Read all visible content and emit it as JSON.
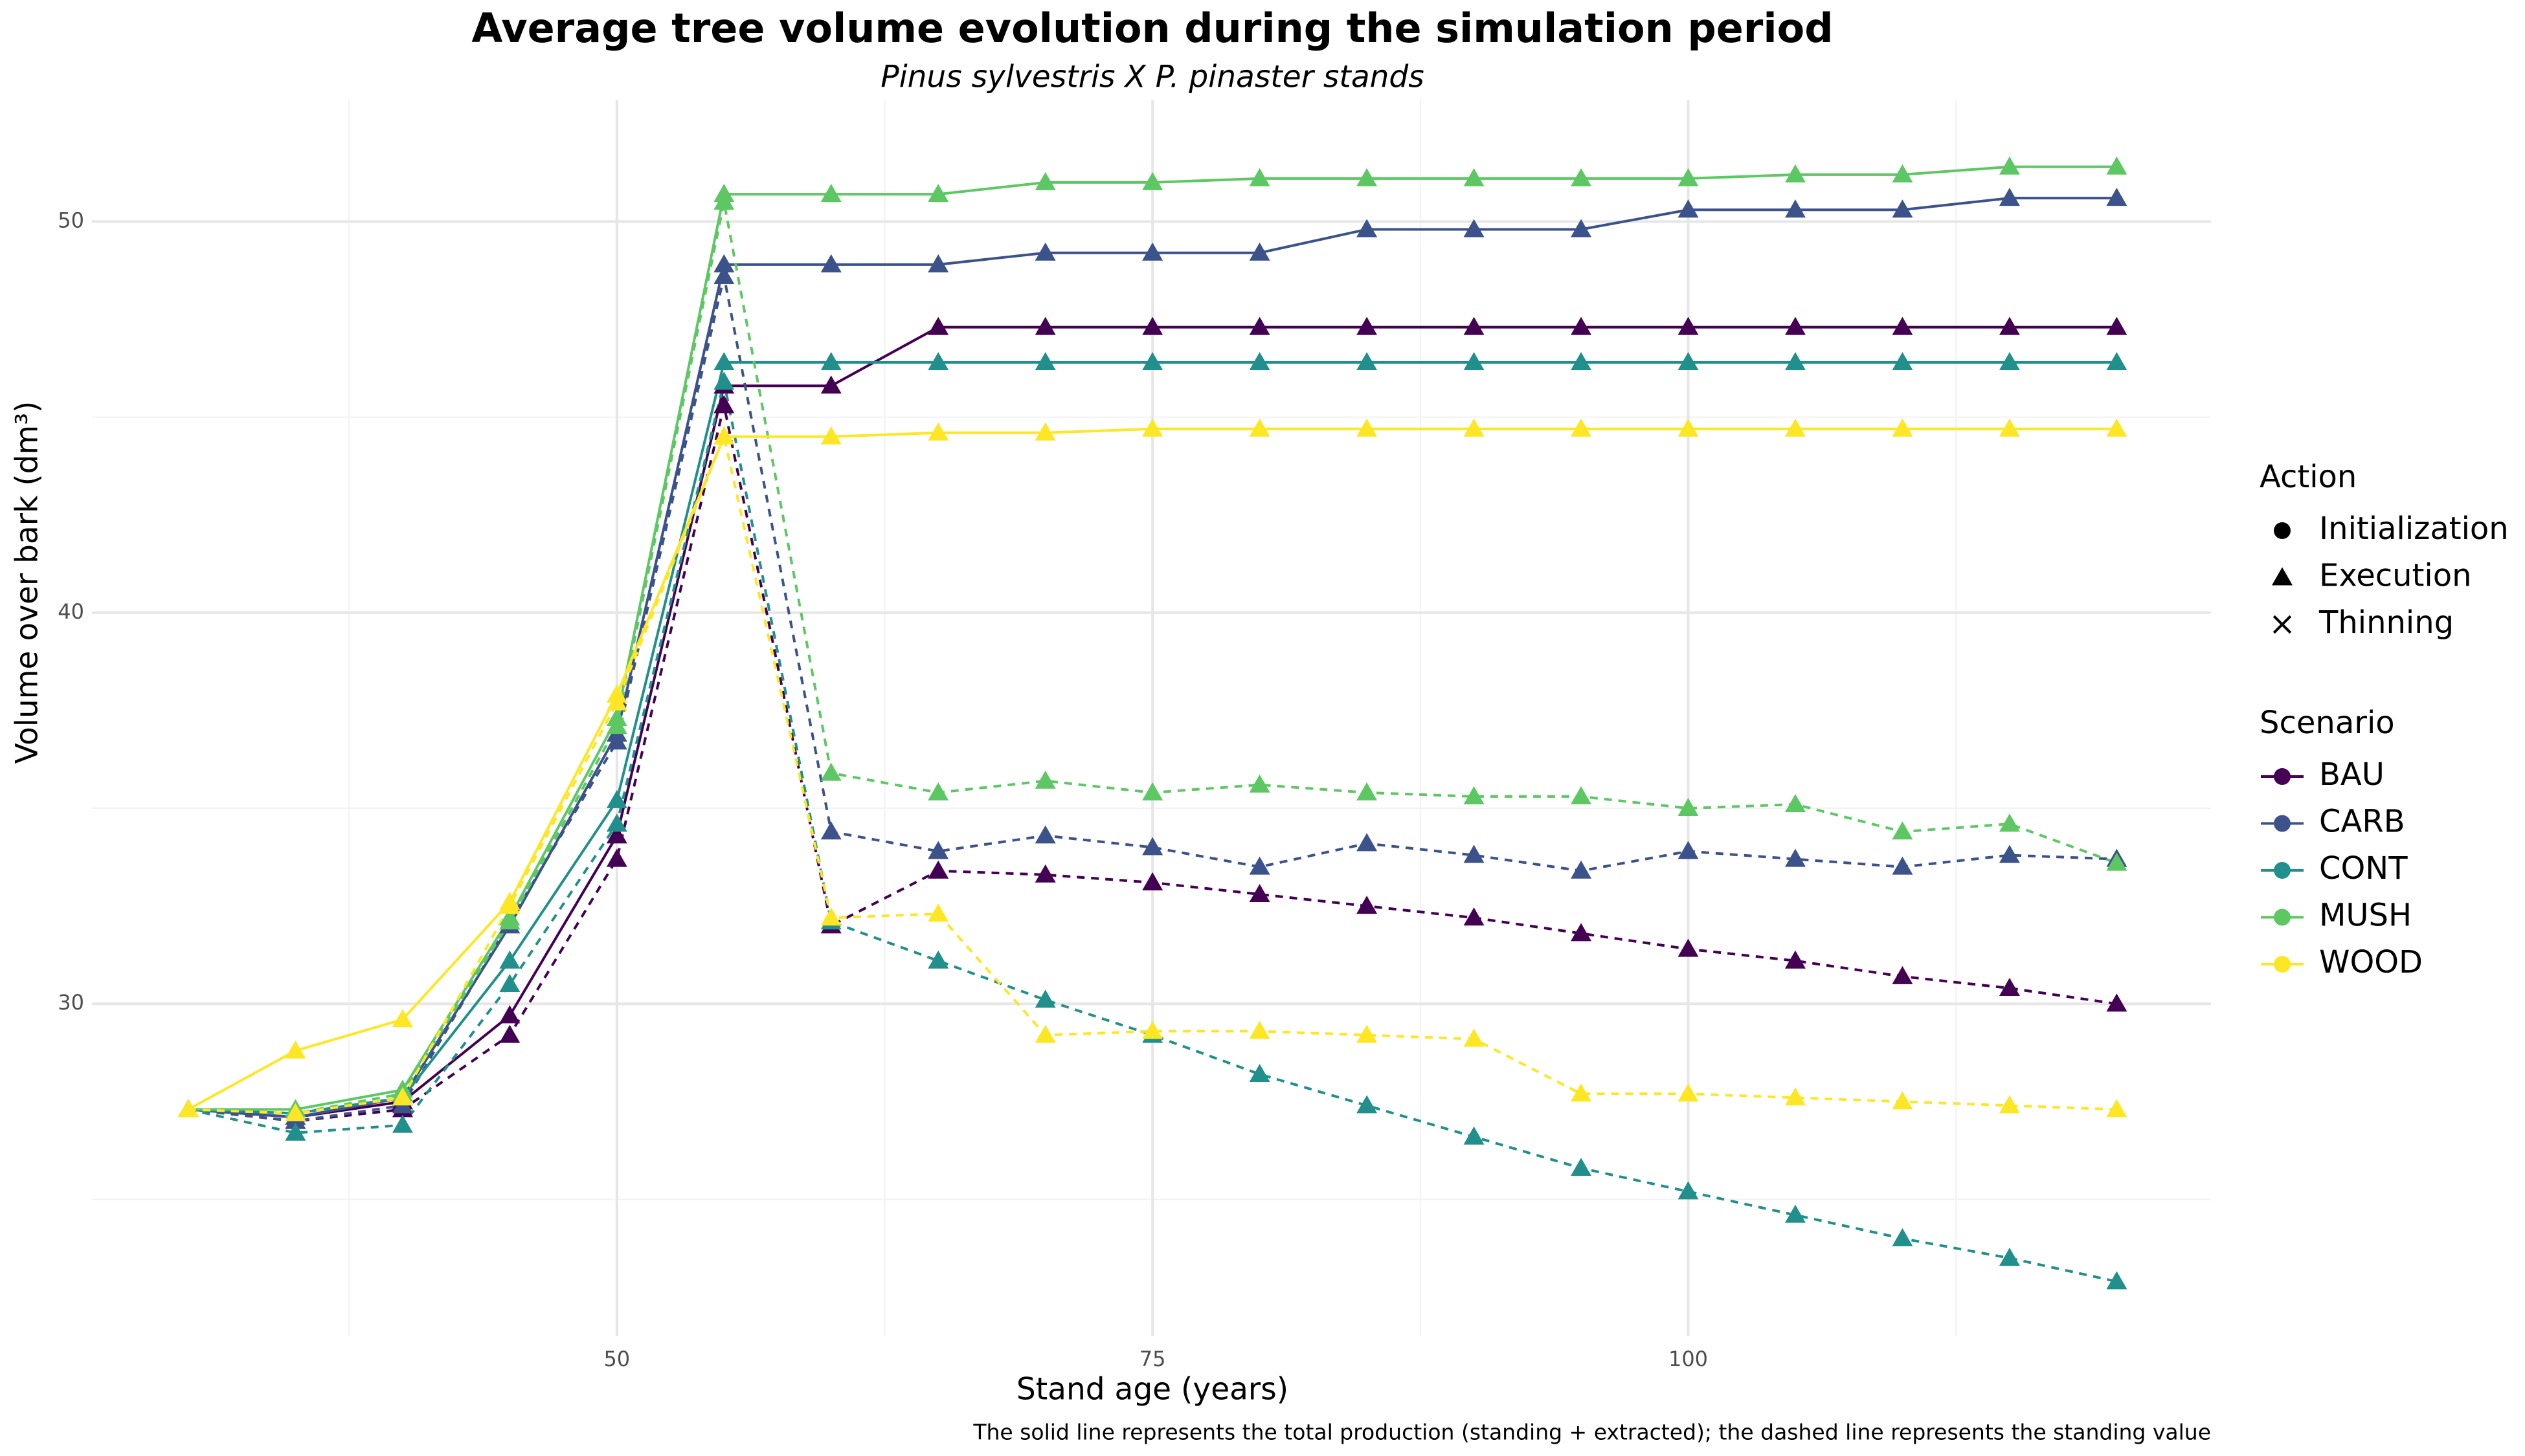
{
  "chart_data": {
    "type": "line",
    "title": "Average tree volume evolution during the simulation period",
    "subtitle": "Pinus sylvestris X P. pinaster stands",
    "x_label": "Stand age (years)",
    "y_label": "Volume over bark (dm³)",
    "caption": "The solid line represents the total production (standing + extracted); the dashed line represents the standing value",
    "x": [
      30,
      35,
      40,
      45,
      50,
      55,
      60,
      65,
      70,
      75,
      80,
      85,
      90,
      95,
      100,
      105,
      110,
      115,
      120
    ],
    "xlim": [
      25.5,
      124.4
    ],
    "ylim": [
      21.5,
      53.1
    ],
    "xticks": [
      50,
      75,
      100
    ],
    "yticks": [
      30,
      40,
      50
    ],
    "xminor": [
      37.5,
      62.5,
      87.5,
      112.5
    ],
    "yminor": [
      25,
      35,
      45
    ],
    "grid": true,
    "line_styles": {
      "total": "solid",
      "standing": "dashed"
    },
    "marker": "triangle",
    "action_title": "Action",
    "actions": [
      {
        "name": "Initialization",
        "shape": "circle"
      },
      {
        "name": "Execution",
        "shape": "triangle"
      },
      {
        "name": "Thinning",
        "shape": "cross"
      }
    ],
    "legend_title": "Scenario",
    "series": [
      {
        "name": "BAU",
        "color": "#440154",
        "total": [
          27.3,
          27.1,
          27.5,
          29.7,
          34.3,
          45.8,
          45.8,
          47.3,
          47.3,
          47.3,
          47.3,
          47.3,
          47.3,
          47.3,
          47.3,
          47.3,
          47.3,
          47.3,
          47.3
        ],
        "standing": [
          27.3,
          27.0,
          27.3,
          29.2,
          33.7,
          45.3,
          32.0,
          33.4,
          33.3,
          33.1,
          32.8,
          32.5,
          32.2,
          31.8,
          31.4,
          31.1,
          30.7,
          30.4,
          30.0
        ]
      },
      {
        "name": "CARB",
        "color": "#3b528b",
        "total": [
          27.3,
          27.1,
          27.6,
          32.0,
          36.9,
          48.9,
          48.9,
          48.9,
          49.2,
          49.2,
          49.2,
          49.8,
          49.8,
          49.8,
          50.3,
          50.3,
          50.3,
          50.6,
          50.6
        ],
        "standing": [
          27.3,
          27.0,
          27.4,
          32.1,
          36.7,
          48.6,
          34.4,
          33.9,
          34.3,
          34.0,
          33.5,
          34.1,
          33.8,
          33.4,
          33.9,
          33.7,
          33.5,
          33.8,
          33.7
        ]
      },
      {
        "name": "CONT",
        "color": "#21908c",
        "total": [
          27.3,
          27.2,
          27.6,
          31.1,
          35.2,
          46.4,
          46.4,
          46.4,
          46.4,
          46.4,
          46.4,
          46.4,
          46.4,
          46.4,
          46.4,
          46.4,
          46.4,
          46.4,
          46.4
        ],
        "standing": [
          27.3,
          26.7,
          26.9,
          30.5,
          34.6,
          45.9,
          32.1,
          31.1,
          30.1,
          29.2,
          28.2,
          27.4,
          26.6,
          25.8,
          25.2,
          24.6,
          24.0,
          23.5,
          22.9
        ]
      },
      {
        "name": "MUSH",
        "color": "#5dc863",
        "total": [
          27.3,
          27.3,
          27.8,
          32.2,
          37.3,
          50.7,
          50.7,
          50.7,
          51.0,
          51.0,
          51.1,
          51.1,
          51.1,
          51.1,
          51.1,
          51.2,
          51.2,
          51.4,
          51.4
        ],
        "standing": [
          27.3,
          27.2,
          27.7,
          32.1,
          37.1,
          50.5,
          35.9,
          35.4,
          35.7,
          35.4,
          35.6,
          35.4,
          35.3,
          35.3,
          35.0,
          35.1,
          34.4,
          34.6,
          33.6
        ]
      },
      {
        "name": "WOOD",
        "color": "#fde725",
        "total": [
          27.3,
          28.8,
          29.6,
          32.6,
          37.9,
          44.5,
          44.5,
          44.6,
          44.6,
          44.7,
          44.7,
          44.7,
          44.7,
          44.7,
          44.7,
          44.7,
          44.7,
          44.7,
          44.7
        ],
        "standing": [
          27.3,
          27.2,
          27.6,
          32.5,
          37.7,
          44.5,
          32.2,
          32.3,
          29.2,
          29.3,
          29.3,
          29.2,
          29.1,
          27.7,
          27.7,
          27.6,
          27.5,
          27.4,
          27.3
        ]
      }
    ]
  }
}
